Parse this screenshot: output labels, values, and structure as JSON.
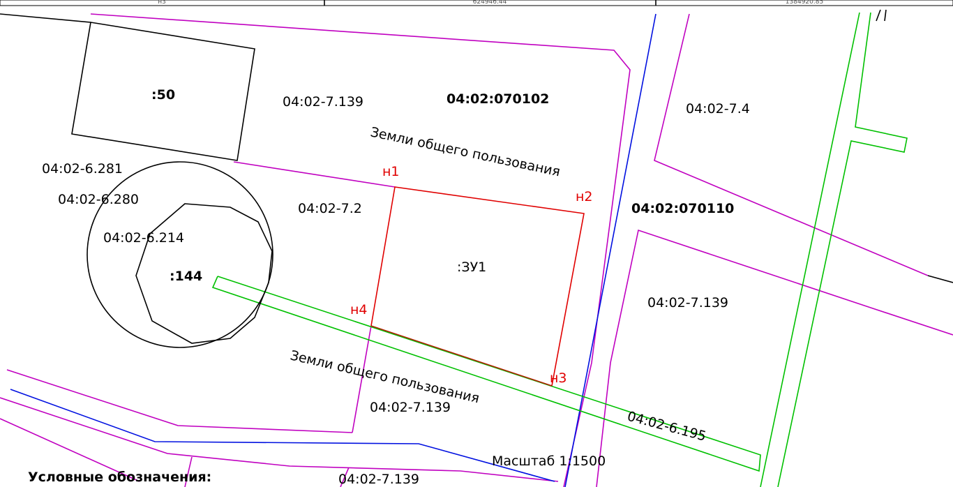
{
  "header_table": {
    "cells": [
      "н3",
      "624946.44",
      "1384920.85"
    ]
  },
  "labels": {
    "parcel_50": ":50",
    "zone_7139_top": "04:02-7.139",
    "quarter_070102": "04:02:070102",
    "zone_74": "04:02-7.4",
    "public_land_top": "Земли общего пользования",
    "zone_6281": "04:02-6.281",
    "point_n1": "н1",
    "point_n2": "н2",
    "zone_6280": "04:02-6.280",
    "zone_72": "04:02-7.2",
    "quarter_070110": "04:02:070110",
    "zone_6214": "04:02-6.214",
    "parcel_zu1": ":ЗУ1",
    "parcel_144": ":144",
    "zone_7139_right": "04:02-7.139",
    "point_n4": "н4",
    "public_land_bottom": "Земли общего пользования",
    "point_n3": "н3",
    "zone_7139_bottom": "04:02-7.139",
    "zone_6195": "04:02-6.195",
    "scale": "Масштаб 1:1500",
    "legend_title": "Условные обозначения:",
    "zone_7139_lowest": "04:02-7.139"
  }
}
